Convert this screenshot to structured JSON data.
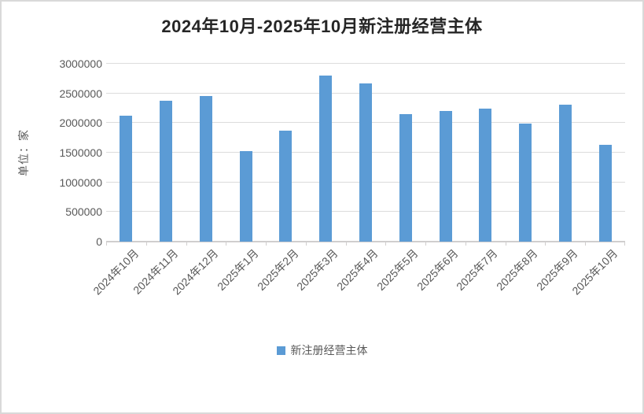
{
  "window": {
    "background_color": "#ffffff",
    "border_color": "#d9d9d9"
  },
  "chart_data": {
    "type": "bar",
    "title": "2024年10月-2025年10月新注册经营主体",
    "ylabel": "单位：家",
    "xlabel": "",
    "series_name": "新注册经营主体",
    "categories": [
      "2024年10月",
      "2024年11月",
      "2024年12月",
      "2025年1月",
      "2025年2月",
      "2025年3月",
      "2025年4月",
      "2025年5月",
      "2025年6月",
      "2025年7月",
      "2025年8月",
      "2025年9月",
      "2025年10月"
    ],
    "values": [
      2120000,
      2380000,
      2450000,
      1530000,
      1870000,
      2800000,
      2670000,
      2150000,
      2210000,
      2250000,
      1990000,
      2310000,
      1630000
    ],
    "ylim": [
      0,
      3000000
    ],
    "yticks": [
      0,
      500000,
      1000000,
      1500000,
      2000000,
      2500000,
      3000000
    ],
    "grid": true,
    "legend_position": "bottom",
    "bar_color": "#5B9BD5",
    "gridline_color": "#DCDCDC",
    "axis_line_color": "#D0CECE",
    "tick_label_color": "#595959",
    "title_color": "#262626"
  }
}
